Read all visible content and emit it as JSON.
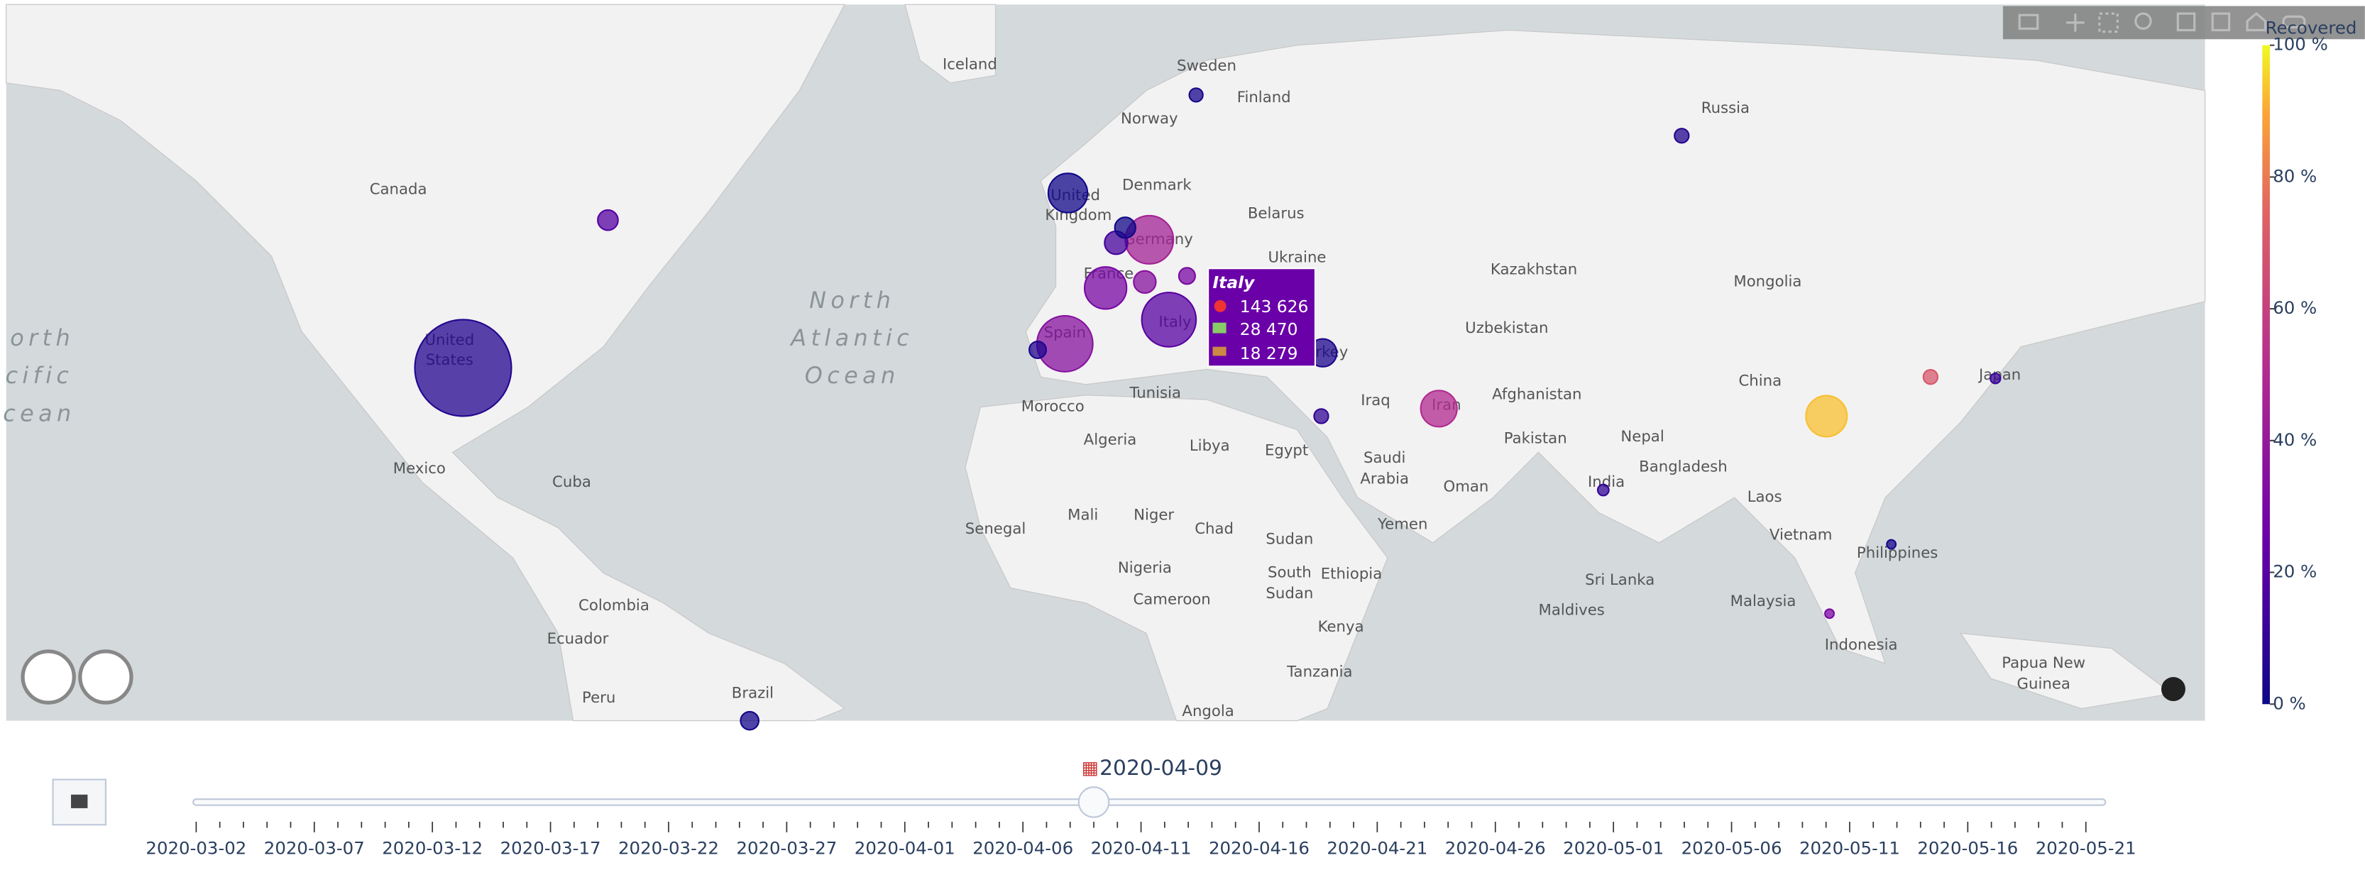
{
  "map": {
    "labels": [
      "Iceland",
      "Sweden",
      "Finland",
      "Norway",
      "Russia",
      "Canada",
      "United",
      "Kingdom",
      "Denmark",
      "Belarus",
      "Germany",
      "France",
      "Ukraine",
      "Kazakhstan",
      "Mongolia",
      "Uzbekistan",
      "Spain",
      "Italy",
      "rkey",
      "United",
      "States",
      "Morocco",
      "Tunisia",
      "Algeria",
      "Libya",
      "Egypt",
      "Iraq",
      "Iran",
      "Afghanistan",
      "Pakistan",
      "Nepal",
      "China",
      "Japan",
      "Bangladesh",
      "India",
      "Saudi",
      "Arabia",
      "Oman",
      "Yemen",
      "Laos",
      "Vietnam",
      "Philippines",
      "Mexico",
      "Cuba",
      "Mali",
      "Niger",
      "Chad",
      "Sudan",
      "Senegal",
      "Nigeria",
      "South",
      "Sudan",
      "Ethiopia",
      "Colombia",
      "Cameroon",
      "Kenya",
      "Sri Lanka",
      "Malaysia",
      "Maldives",
      "Ecuador",
      "Tanzania",
      "Indonesia",
      "Papua New",
      "Guinea",
      "Peru",
      "Brazil",
      "Angola"
    ],
    "oceans": [
      "North",
      "Atlantic",
      "Ocean",
      "orth",
      "cific",
      "cean"
    ]
  },
  "bubbles": [
    {
      "confirmed": 454000,
      "recovered_pct": 6
    },
    {
      "confirmed": 143626,
      "recovered_pct": 20
    },
    {
      "confirmed": 152000,
      "recovered_pct": 35
    },
    {
      "confirmed": 113000,
      "recovered_pct": 45
    },
    {
      "confirmed": 86000,
      "recovered_pct": 30
    },
    {
      "confirmed": 64000,
      "recovered_pct": 50
    },
    {
      "confirmed": 82000,
      "recovered_pct": 93
    },
    {
      "confirmed": 75000,
      "recovered_pct": 1
    },
    {
      "confirmed": 38000,
      "recovered_pct": 4
    },
    {
      "confirmed": 10000,
      "recovered_pct": 70
    },
    {
      "confirmed": 26000,
      "recovered_pct": 15
    },
    {
      "confirmed": 21000,
      "recovered_pct": 1
    },
    {
      "confirmed": 24000,
      "recovered_pct": 35
    },
    {
      "confirmed": 13000,
      "recovered_pct": 30
    },
    {
      "confirmed": 20000,
      "recovered_pct": 20
    },
    {
      "confirmed": 10000,
      "recovered_pct": 6
    },
    {
      "confirmed": 6000,
      "recovered_pct": 10
    },
    {
      "confirmed": 16000,
      "recovered_pct": 2
    },
    {
      "confirmed": 5000,
      "recovered_pct": 12
    },
    {
      "confirmed": 14000,
      "recovered_pct": 5
    },
    {
      "confirmed": 9000,
      "recovered_pct": 3
    },
    {
      "confirmed": 10000,
      "recovered_pct": 10
    },
    {
      "confirmed": 4000,
      "recovered_pct": 30
    },
    {
      "confirmed": 4000,
      "recovered_pct": 3
    }
  ],
  "tooltip": {
    "title": "Italy",
    "lines": [
      "143 626",
      "28 470",
      "18 279"
    ]
  },
  "colorbar": {
    "title": "Recovered",
    "lim": [
      0,
      100
    ],
    "ticks": [
      {
        "value": 0,
        "label": "0 %"
      },
      {
        "value": 20,
        "label": "20 %"
      },
      {
        "value": 40,
        "label": "40 %"
      },
      {
        "value": 60,
        "label": "60 %"
      },
      {
        "value": 80,
        "label": "80 %"
      },
      {
        "value": 100,
        "label": "100 %"
      }
    ]
  },
  "slider": {
    "current": "2020-04-09",
    "ticks": [
      "2020-03-02",
      "2020-03-07",
      "2020-03-12",
      "2020-03-17",
      "2020-03-22",
      "2020-03-27",
      "2020-04-01",
      "2020-04-06",
      "2020-04-11",
      "2020-04-16",
      "2020-04-21",
      "2020-04-26",
      "2020-05-01",
      "2020-05-06",
      "2020-05-11",
      "2020-05-16",
      "2020-05-21"
    ]
  }
}
